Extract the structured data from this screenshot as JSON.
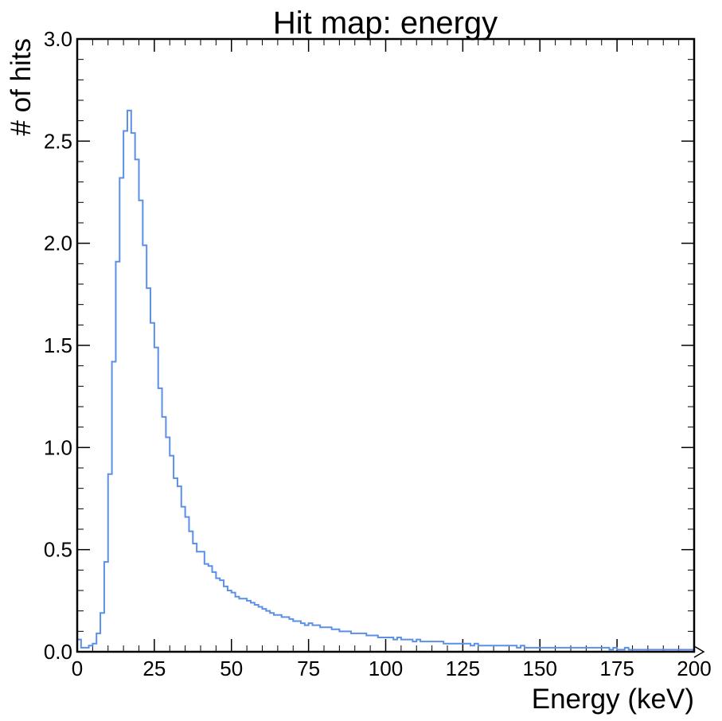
{
  "chart_data": {
    "type": "histogram",
    "title": "Hit map: energy",
    "xlabel": "Energy (keV)",
    "ylabel": "# of hits",
    "xlim": [
      0,
      200
    ],
    "ylim": [
      0,
      3.0
    ],
    "xticks": [
      "0",
      "25",
      "50",
      "75",
      "100",
      "125",
      "150",
      "175",
      "200"
    ],
    "yticks": [
      "0.0",
      "0.5",
      "1.0",
      "1.5",
      "2.0",
      "2.5",
      "3.0"
    ],
    "bin_width": 1.25,
    "grid": false,
    "line_color": "#5b8fe8",
    "series": [
      {
        "values": [
          0.06,
          0.02,
          0.02,
          0.03,
          0.04,
          0.09,
          0.19,
          0.44,
          0.87,
          1.42,
          1.91,
          2.32,
          2.55,
          2.65,
          2.54,
          2.41,
          2.21,
          1.99,
          1.78,
          1.61,
          1.49,
          1.29,
          1.15,
          1.05,
          0.96,
          0.85,
          0.81,
          0.71,
          0.66,
          0.59,
          0.53,
          0.49,
          0.49,
          0.43,
          0.42,
          0.39,
          0.36,
          0.35,
          0.32,
          0.3,
          0.29,
          0.27,
          0.26,
          0.26,
          0.25,
          0.24,
          0.23,
          0.22,
          0.21,
          0.2,
          0.19,
          0.18,
          0.18,
          0.17,
          0.17,
          0.16,
          0.15,
          0.15,
          0.14,
          0.13,
          0.14,
          0.13,
          0.13,
          0.12,
          0.12,
          0.12,
          0.11,
          0.11,
          0.1,
          0.1,
          0.1,
          0.09,
          0.09,
          0.09,
          0.09,
          0.08,
          0.08,
          0.08,
          0.07,
          0.07,
          0.07,
          0.07,
          0.06,
          0.07,
          0.06,
          0.06,
          0.06,
          0.05,
          0.06,
          0.05,
          0.05,
          0.05,
          0.05,
          0.05,
          0.05,
          0.04,
          0.04,
          0.04,
          0.04,
          0.04,
          0.04,
          0.04,
          0.03,
          0.04,
          0.03,
          0.03,
          0.03,
          0.03,
          0.03,
          0.03,
          0.03,
          0.03,
          0.03,
          0.03,
          0.02,
          0.03,
          0.02,
          0.02,
          0.02,
          0.02,
          0.02,
          0.02,
          0.02,
          0.02,
          0.02,
          0.02,
          0.02,
          0.02,
          0.02,
          0.02,
          0.02,
          0.02,
          0.02,
          0.02,
          0.02,
          0.02,
          0.02,
          0.02,
          0.01,
          0.02,
          0.01,
          0.01,
          0.02,
          0.01,
          0.01,
          0.01,
          0.01,
          0.01,
          0.01,
          0.01,
          0.01,
          0.01,
          0.01,
          0.01,
          0.01,
          0.01,
          0.01,
          0.01,
          0.01,
          0.01
        ]
      }
    ]
  }
}
